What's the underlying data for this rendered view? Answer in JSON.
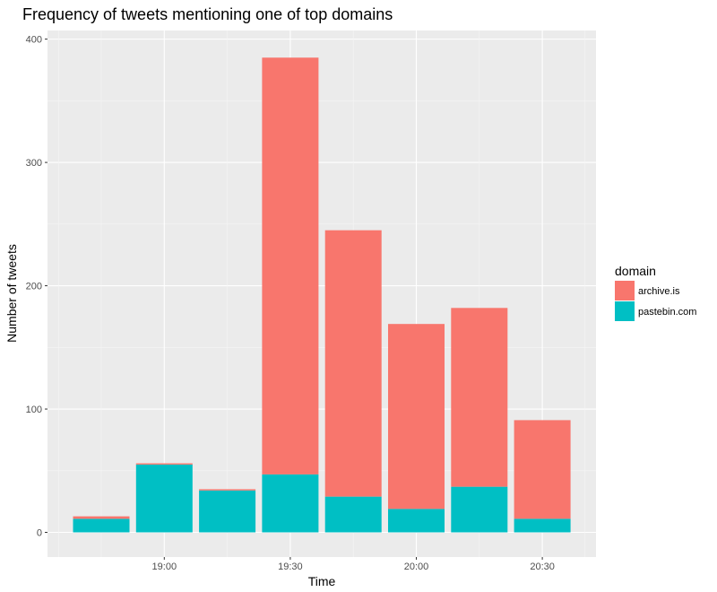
{
  "chart_data": {
    "type": "bar",
    "stacked": true,
    "title": "Frequency of tweets mentioning one of top domains",
    "xlabel": "Time",
    "ylabel": "Number of tweets",
    "x_tick_labels": [
      "19:00",
      "19:30",
      "20:00",
      "20:30"
    ],
    "y_ticks": [
      0,
      100,
      200,
      300,
      400
    ],
    "ylim": [
      -20,
      407
    ],
    "legend_title": "domain",
    "legend_position": "right",
    "grid": true,
    "categories": [
      "18:45",
      "19:00",
      "19:15",
      "19:30",
      "19:45",
      "20:00",
      "20:15",
      "20:30"
    ],
    "series": [
      {
        "name": "pastebin.com",
        "color": "#00bfc4",
        "values": [
          11,
          55,
          34,
          47,
          29,
          19,
          37,
          11
        ]
      },
      {
        "name": "archive.is",
        "color": "#f8766d",
        "values": [
          2,
          1,
          1,
          338,
          216,
          150,
          145,
          80
        ]
      }
    ]
  }
}
